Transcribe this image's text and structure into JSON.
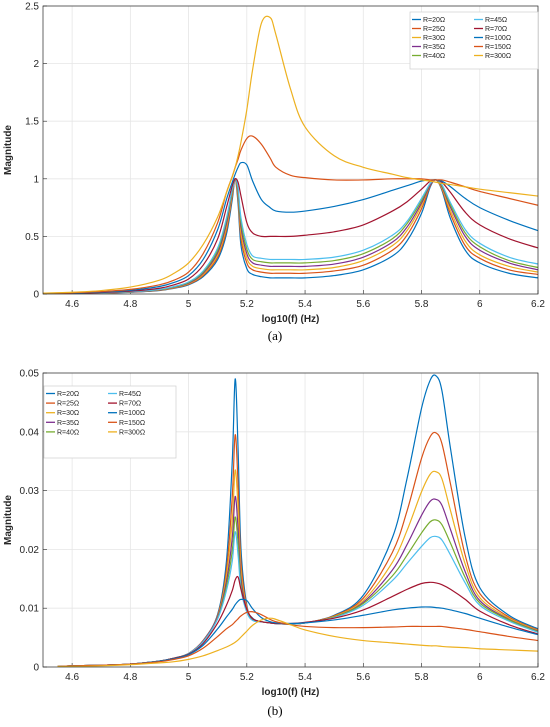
{
  "chart_data": [
    {
      "id": "a",
      "panel_label": "(a)",
      "type": "line",
      "xlabel": "log10(f) (Hz)",
      "ylabel": "Magnitude",
      "xlim": [
        4.5,
        6.2
      ],
      "ylim": [
        0,
        2.5
      ],
      "xticks": [
        "4.6",
        "4.8",
        "5",
        "5.2",
        "5.4",
        "5.6",
        "5.8",
        "6",
        "6.2"
      ],
      "yticks": [
        "0",
        "0.5",
        "1",
        "1.5",
        "2",
        "2.5"
      ],
      "grid": true,
      "legend_position": "top-right",
      "x": [
        4.5,
        4.6,
        4.7,
        4.8,
        4.9,
        4.95,
        5.0,
        5.05,
        5.1,
        5.13,
        5.15,
        5.16,
        5.17,
        5.18,
        5.2,
        5.22,
        5.25,
        5.28,
        5.3,
        5.35,
        5.4,
        5.5,
        5.6,
        5.7,
        5.75,
        5.8,
        5.83,
        5.85,
        5.87,
        5.9,
        5.95,
        6.0,
        6.1,
        6.2
      ],
      "series": [
        {
          "name": "R=20Ω",
          "color": "#0072bd",
          "values": [
            0.003,
            0.005,
            0.009,
            0.015,
            0.03,
            0.05,
            0.08,
            0.15,
            0.3,
            0.52,
            0.82,
            1.0,
            0.78,
            0.42,
            0.22,
            0.17,
            0.15,
            0.14,
            0.14,
            0.14,
            0.14,
            0.16,
            0.21,
            0.33,
            0.46,
            0.7,
            0.93,
            0.99,
            0.9,
            0.65,
            0.38,
            0.27,
            0.18,
            0.14
          ]
        },
        {
          "name": "R=25Ω",
          "color": "#d95319",
          "values": [
            0.003,
            0.005,
            0.009,
            0.016,
            0.032,
            0.053,
            0.085,
            0.16,
            0.32,
            0.55,
            0.85,
            1.0,
            0.82,
            0.48,
            0.27,
            0.21,
            0.19,
            0.18,
            0.18,
            0.18,
            0.18,
            0.2,
            0.25,
            0.38,
            0.51,
            0.74,
            0.94,
            0.99,
            0.91,
            0.69,
            0.42,
            0.31,
            0.21,
            0.17
          ]
        },
        {
          "name": "R=30Ω",
          "color": "#edb120",
          "values": [
            0.003,
            0.005,
            0.01,
            0.017,
            0.034,
            0.056,
            0.09,
            0.17,
            0.34,
            0.58,
            0.87,
            1.0,
            0.85,
            0.53,
            0.31,
            0.24,
            0.22,
            0.21,
            0.21,
            0.21,
            0.21,
            0.23,
            0.29,
            0.42,
            0.55,
            0.77,
            0.95,
            0.99,
            0.92,
            0.72,
            0.46,
            0.34,
            0.24,
            0.19
          ]
        },
        {
          "name": "R=35Ω",
          "color": "#7e2f8e",
          "values": [
            0.003,
            0.005,
            0.01,
            0.018,
            0.036,
            0.059,
            0.095,
            0.18,
            0.36,
            0.61,
            0.89,
            1.0,
            0.88,
            0.58,
            0.35,
            0.27,
            0.25,
            0.24,
            0.24,
            0.24,
            0.24,
            0.26,
            0.32,
            0.45,
            0.58,
            0.79,
            0.95,
            0.99,
            0.93,
            0.75,
            0.5,
            0.38,
            0.27,
            0.21
          ]
        },
        {
          "name": "R=40Ω",
          "color": "#77ac30",
          "values": [
            0.003,
            0.005,
            0.01,
            0.019,
            0.038,
            0.062,
            0.1,
            0.19,
            0.38,
            0.64,
            0.9,
            1.0,
            0.9,
            0.62,
            0.39,
            0.3,
            0.28,
            0.27,
            0.27,
            0.27,
            0.27,
            0.29,
            0.35,
            0.48,
            0.61,
            0.81,
            0.96,
            0.99,
            0.94,
            0.77,
            0.53,
            0.41,
            0.29,
            0.23
          ]
        },
        {
          "name": "R=45Ω",
          "color": "#4dbeee",
          "values": [
            0.003,
            0.006,
            0.011,
            0.02,
            0.04,
            0.065,
            0.105,
            0.2,
            0.4,
            0.66,
            0.91,
            1.0,
            0.92,
            0.66,
            0.43,
            0.33,
            0.31,
            0.3,
            0.3,
            0.3,
            0.3,
            0.32,
            0.38,
            0.51,
            0.63,
            0.83,
            0.96,
            0.99,
            0.95,
            0.79,
            0.56,
            0.44,
            0.32,
            0.26
          ]
        },
        {
          "name": "R=70Ω",
          "color": "#a2142f",
          "values": [
            0.004,
            0.007,
            0.013,
            0.025,
            0.05,
            0.08,
            0.13,
            0.25,
            0.48,
            0.75,
            0.94,
            1.0,
            0.97,
            0.85,
            0.62,
            0.53,
            0.5,
            0.5,
            0.5,
            0.5,
            0.51,
            0.54,
            0.6,
            0.72,
            0.8,
            0.91,
            0.98,
            0.99,
            0.97,
            0.88,
            0.71,
            0.6,
            0.48,
            0.4
          ]
        },
        {
          "name": "R=100Ω",
          "color": "#0072bd",
          "values": [
            0.005,
            0.009,
            0.017,
            0.032,
            0.065,
            0.1,
            0.16,
            0.3,
            0.56,
            0.82,
            0.97,
            1.04,
            1.1,
            1.14,
            1.12,
            0.98,
            0.82,
            0.75,
            0.72,
            0.71,
            0.72,
            0.76,
            0.82,
            0.9,
            0.94,
            0.98,
            0.99,
            0.99,
            0.98,
            0.93,
            0.83,
            0.75,
            0.64,
            0.55
          ]
        },
        {
          "name": "R=150Ω",
          "color": "#d95319",
          "values": [
            0.006,
            0.011,
            0.021,
            0.04,
            0.08,
            0.12,
            0.19,
            0.35,
            0.62,
            0.88,
            1.02,
            1.1,
            1.17,
            1.25,
            1.35,
            1.37,
            1.3,
            1.18,
            1.1,
            1.03,
            1.01,
            0.99,
            0.99,
            1.0,
            1.0,
            1.0,
            0.99,
            0.99,
            0.99,
            0.97,
            0.93,
            0.89,
            0.83,
            0.77
          ]
        },
        {
          "name": "R=300Ω",
          "color": "#edb120",
          "values": [
            0.008,
            0.015,
            0.03,
            0.06,
            0.12,
            0.18,
            0.27,
            0.43,
            0.67,
            0.88,
            1.02,
            1.1,
            1.2,
            1.32,
            1.6,
            1.95,
            2.35,
            2.4,
            2.25,
            1.78,
            1.45,
            1.2,
            1.1,
            1.04,
            1.01,
            0.99,
            0.98,
            0.97,
            0.96,
            0.95,
            0.93,
            0.91,
            0.88,
            0.85
          ]
        }
      ]
    },
    {
      "id": "b",
      "panel_label": "(b)",
      "type": "line",
      "xlabel": "log10(f) (Hz)",
      "ylabel": "Magnitude",
      "xlim": [
        4.5,
        6.2
      ],
      "ylim": [
        0,
        0.05
      ],
      "xticks": [
        "4.6",
        "4.8",
        "5",
        "5.2",
        "5.4",
        "5.6",
        "5.8",
        "6",
        "6.2"
      ],
      "yticks": [
        "0",
        "0.01",
        "0.02",
        "0.03",
        "0.04",
        "0.05"
      ],
      "grid": true,
      "legend_position": "top-left",
      "x": [
        4.55,
        4.6,
        4.7,
        4.8,
        4.9,
        4.95,
        5.0,
        5.05,
        5.1,
        5.13,
        5.15,
        5.16,
        5.17,
        5.18,
        5.2,
        5.22,
        5.25,
        5.28,
        5.3,
        5.35,
        5.4,
        5.5,
        5.6,
        5.7,
        5.75,
        5.8,
        5.83,
        5.85,
        5.87,
        5.9,
        5.95,
        6.0,
        6.1,
        6.2
      ],
      "series": [
        {
          "name": "R=20Ω",
          "color": "#0072bd",
          "values": [
            0.0001,
            0.0002,
            0.0003,
            0.0005,
            0.001,
            0.0015,
            0.0023,
            0.0045,
            0.009,
            0.018,
            0.035,
            0.049,
            0.037,
            0.02,
            0.0105,
            0.0083,
            0.0077,
            0.0075,
            0.0074,
            0.0073,
            0.0075,
            0.0088,
            0.0122,
            0.022,
            0.032,
            0.044,
            0.0488,
            0.0495,
            0.047,
            0.037,
            0.022,
            0.0135,
            0.0088,
            0.0065
          ]
        },
        {
          "name": "R=25Ω",
          "color": "#d95319",
          "values": [
            0.0001,
            0.0002,
            0.0003,
            0.0005,
            0.001,
            0.0015,
            0.0023,
            0.0045,
            0.0088,
            0.0165,
            0.029,
            0.0395,
            0.031,
            0.0178,
            0.0102,
            0.0082,
            0.0077,
            0.0075,
            0.0074,
            0.0073,
            0.0075,
            0.0087,
            0.0117,
            0.0195,
            0.0265,
            0.0355,
            0.0392,
            0.0398,
            0.038,
            0.031,
            0.019,
            0.0125,
            0.0085,
            0.0063
          ]
        },
        {
          "name": "R=30Ω",
          "color": "#edb120",
          "values": [
            0.0001,
            0.0002,
            0.0003,
            0.0005,
            0.001,
            0.0015,
            0.0023,
            0.0044,
            0.0086,
            0.0155,
            0.025,
            0.0335,
            0.027,
            0.0163,
            0.0099,
            0.0081,
            0.0077,
            0.0075,
            0.0074,
            0.0073,
            0.0075,
            0.0086,
            0.0113,
            0.0178,
            0.0232,
            0.0298,
            0.0328,
            0.0332,
            0.032,
            0.0265,
            0.0175,
            0.0118,
            0.0083,
            0.0062
          ]
        },
        {
          "name": "R=35Ω",
          "color": "#7e2f8e",
          "values": [
            0.0001,
            0.0002,
            0.0003,
            0.0005,
            0.001,
            0.0015,
            0.0023,
            0.0044,
            0.0085,
            0.0145,
            0.022,
            0.029,
            0.0235,
            0.015,
            0.0097,
            0.008,
            0.0077,
            0.0075,
            0.0074,
            0.0073,
            0.0075,
            0.0085,
            0.011,
            0.0165,
            0.0208,
            0.0258,
            0.0282,
            0.0285,
            0.0275,
            0.0233,
            0.0162,
            0.0113,
            0.0081,
            0.0061
          ]
        },
        {
          "name": "R=40Ω",
          "color": "#77ac30",
          "values": [
            0.0001,
            0.0002,
            0.0003,
            0.0005,
            0.001,
            0.0015,
            0.0023,
            0.0043,
            0.0083,
            0.0137,
            0.0198,
            0.0255,
            0.021,
            0.014,
            0.0095,
            0.008,
            0.0077,
            0.0075,
            0.0074,
            0.0073,
            0.0075,
            0.0085,
            0.0108,
            0.0155,
            0.019,
            0.0228,
            0.0247,
            0.025,
            0.0242,
            0.021,
            0.0152,
            0.0109,
            0.008,
            0.006
          ]
        },
        {
          "name": "R=45Ω",
          "color": "#4dbeee",
          "values": [
            0.0001,
            0.0002,
            0.0003,
            0.0005,
            0.001,
            0.0015,
            0.0023,
            0.0043,
            0.0082,
            0.013,
            0.018,
            0.023,
            0.019,
            0.0132,
            0.0093,
            0.0079,
            0.0077,
            0.0075,
            0.0074,
            0.0073,
            0.0075,
            0.0084,
            0.0105,
            0.0147,
            0.0176,
            0.0205,
            0.022,
            0.0222,
            0.0216,
            0.019,
            0.0143,
            0.0105,
            0.0078,
            0.0059
          ]
        },
        {
          "name": "R=70Ω",
          "color": "#a2142f",
          "values": [
            0.0001,
            0.0002,
            0.0003,
            0.0005,
            0.001,
            0.0015,
            0.0022,
            0.004,
            0.0075,
            0.0105,
            0.013,
            0.0148,
            0.0153,
            0.0132,
            0.0098,
            0.0082,
            0.0077,
            0.0075,
            0.0074,
            0.0074,
            0.0076,
            0.0083,
            0.0097,
            0.012,
            0.0132,
            0.0142,
            0.0144,
            0.0143,
            0.014,
            0.0132,
            0.0115,
            0.0095,
            0.0072,
            0.0056
          ]
        },
        {
          "name": "R=100Ω",
          "color": "#0072bd",
          "values": [
            0.0001,
            0.0002,
            0.0003,
            0.0005,
            0.001,
            0.0014,
            0.0021,
            0.0037,
            0.0065,
            0.0085,
            0.0098,
            0.0106,
            0.0112,
            0.0115,
            0.0113,
            0.0099,
            0.0084,
            0.0077,
            0.0075,
            0.0074,
            0.0075,
            0.008,
            0.0088,
            0.0097,
            0.01,
            0.0102,
            0.0102,
            0.0101,
            0.01,
            0.0097,
            0.0091,
            0.0083,
            0.0068,
            0.0055
          ]
        },
        {
          "name": "R=150Ω",
          "color": "#d95319",
          "values": [
            0.0001,
            0.0002,
            0.0003,
            0.0005,
            0.0009,
            0.0013,
            0.0019,
            0.0032,
            0.0052,
            0.0065,
            0.0072,
            0.0077,
            0.0082,
            0.0087,
            0.0093,
            0.0094,
            0.0089,
            0.0081,
            0.0077,
            0.0072,
            0.0069,
            0.0067,
            0.0067,
            0.0068,
            0.0069,
            0.0069,
            0.0069,
            0.0069,
            0.0069,
            0.0067,
            0.0064,
            0.006,
            0.0052,
            0.0045
          ]
        },
        {
          "name": "R=300Ω",
          "color": "#edb120",
          "values": [
            0.0001,
            0.0001,
            0.0002,
            0.0004,
            0.0007,
            0.0009,
            0.0013,
            0.0019,
            0.0028,
            0.0034,
            0.0039,
            0.0042,
            0.0046,
            0.0051,
            0.0061,
            0.0071,
            0.008,
            0.0083,
            0.0081,
            0.0072,
            0.0063,
            0.0052,
            0.0045,
            0.0041,
            0.0039,
            0.0037,
            0.0036,
            0.0036,
            0.0035,
            0.0034,
            0.0033,
            0.0031,
            0.0029,
            0.0027
          ]
        }
      ]
    }
  ]
}
